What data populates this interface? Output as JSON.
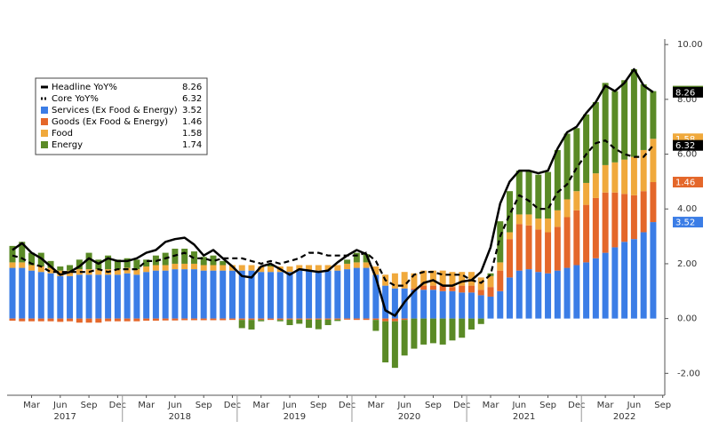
{
  "chart_data": {
    "type": "stacked_bar_line",
    "categories": [
      null,
      null,
      "Mar",
      null,
      null,
      "Jun",
      null,
      null,
      "Sep",
      null,
      null,
      "Dec",
      null,
      null,
      "Mar",
      null,
      null,
      "Jun",
      null,
      null,
      "Sep",
      null,
      null,
      "Dec",
      null,
      null,
      "Mar",
      null,
      null,
      "Jun",
      null,
      null,
      "Sep",
      null,
      null,
      "Dec",
      null,
      null,
      "Mar",
      null,
      null,
      "Jun",
      null,
      null,
      "Sep",
      null,
      null,
      "Dec",
      null,
      null,
      "Mar",
      null,
      null,
      "Jun",
      null,
      null,
      "Sep",
      null,
      null,
      "Dec",
      null,
      null,
      "Mar",
      null,
      null,
      "Jun",
      null,
      null,
      "Sep"
    ],
    "years": [
      "2017",
      "2018",
      "2019",
      "2020",
      "2021",
      "2022"
    ],
    "series": [
      {
        "name": "Headline YoY%",
        "kind": "line",
        "dashed": false,
        "color": "#000000",
        "values": [
          2.5,
          2.75,
          2.4,
          2.2,
          1.9,
          1.6,
          1.7,
          1.9,
          2.2,
          2.0,
          2.2,
          2.1,
          2.1,
          2.2,
          2.4,
          2.5,
          2.8,
          2.9,
          2.95,
          2.7,
          2.3,
          2.5,
          2.2,
          1.9,
          1.55,
          1.5,
          1.9,
          2.0,
          1.8,
          1.6,
          1.8,
          1.75,
          1.7,
          1.75,
          2.05,
          2.3,
          2.5,
          2.35,
          1.5,
          0.3,
          0.1,
          0.6,
          1.0,
          1.3,
          1.4,
          1.2,
          1.2,
          1.35,
          1.4,
          1.7,
          2.6,
          4.2,
          5.0,
          5.4,
          5.4,
          5.3,
          5.4,
          6.2,
          6.8,
          7.0,
          7.5,
          7.9,
          8.5,
          8.3,
          8.6,
          9.1,
          8.5,
          8.26,
          null
        ]
      },
      {
        "name": "Core YoY%",
        "kind": "line",
        "dashed": true,
        "color": "#000000",
        "values": [
          2.3,
          2.2,
          2.0,
          1.9,
          1.7,
          1.7,
          1.7,
          1.7,
          1.7,
          1.8,
          1.7,
          1.8,
          1.8,
          1.8,
          2.1,
          2.1,
          2.2,
          2.3,
          2.4,
          2.2,
          2.2,
          2.1,
          2.2,
          2.2,
          2.2,
          2.1,
          2.0,
          2.1,
          2.0,
          2.1,
          2.2,
          2.4,
          2.4,
          2.3,
          2.3,
          2.3,
          2.3,
          2.4,
          2.1,
          1.4,
          1.2,
          1.2,
          1.6,
          1.7,
          1.7,
          1.6,
          1.6,
          1.6,
          1.4,
          1.3,
          1.6,
          3.0,
          3.8,
          4.5,
          4.3,
          4.0,
          4.0,
          4.6,
          4.9,
          5.5,
          6.0,
          6.4,
          6.5,
          6.2,
          6.0,
          5.9,
          5.9,
          6.32,
          null
        ]
      },
      {
        "name": "Services (Ex Food & Energy)",
        "kind": "bar",
        "color": "#3b7de6",
        "values": [
          1.85,
          1.85,
          1.75,
          1.7,
          1.65,
          1.55,
          1.55,
          1.6,
          1.6,
          1.6,
          1.6,
          1.6,
          1.65,
          1.6,
          1.7,
          1.75,
          1.75,
          1.8,
          1.8,
          1.8,
          1.75,
          1.75,
          1.75,
          1.75,
          1.75,
          1.75,
          1.7,
          1.7,
          1.7,
          1.7,
          1.75,
          1.75,
          1.75,
          1.75,
          1.75,
          1.8,
          1.85,
          1.85,
          1.6,
          1.2,
          1.1,
          1.1,
          1.05,
          1.05,
          1.05,
          1.0,
          1.0,
          0.95,
          0.95,
          0.85,
          0.8,
          1.0,
          1.5,
          1.75,
          1.8,
          1.7,
          1.65,
          1.75,
          1.85,
          1.95,
          2.05,
          2.2,
          2.4,
          2.6,
          2.8,
          2.9,
          3.15,
          3.52,
          null
        ]
      },
      {
        "name": "Goods (Ex Food & Energy)",
        "kind": "bar",
        "color": "#e4672a",
        "values": [
          -0.08,
          -0.1,
          -0.1,
          -0.1,
          -0.1,
          -0.12,
          -0.1,
          -0.15,
          -0.15,
          -0.15,
          -0.1,
          -0.1,
          -0.1,
          -0.1,
          -0.08,
          -0.08,
          -0.07,
          -0.07,
          -0.06,
          -0.06,
          -0.06,
          -0.06,
          -0.06,
          -0.05,
          -0.05,
          -0.05,
          -0.05,
          -0.05,
          -0.05,
          -0.04,
          -0.04,
          -0.04,
          -0.04,
          -0.04,
          -0.04,
          -0.04,
          -0.05,
          -0.05,
          -0.05,
          -0.1,
          -0.1,
          -0.05,
          0.05,
          0.15,
          0.15,
          0.2,
          0.15,
          0.25,
          0.25,
          0.2,
          0.35,
          0.75,
          1.4,
          1.7,
          1.6,
          1.55,
          1.5,
          1.6,
          1.85,
          2.0,
          2.1,
          2.2,
          2.2,
          2.0,
          1.75,
          1.6,
          1.5,
          1.46,
          null
        ]
      },
      {
        "name": "Food",
        "kind": "bar",
        "color": "#f0a93c",
        "values": [
          0.2,
          0.2,
          0.2,
          0.2,
          0.2,
          0.2,
          0.2,
          0.2,
          0.2,
          0.2,
          0.2,
          0.2,
          0.2,
          0.2,
          0.2,
          0.2,
          0.2,
          0.2,
          0.2,
          0.2,
          0.2,
          0.2,
          0.2,
          0.2,
          0.2,
          0.2,
          0.2,
          0.2,
          0.2,
          0.2,
          0.2,
          0.2,
          0.2,
          0.2,
          0.2,
          0.2,
          0.2,
          0.2,
          0.3,
          0.4,
          0.55,
          0.6,
          0.55,
          0.55,
          0.55,
          0.55,
          0.55,
          0.5,
          0.5,
          0.45,
          0.4,
          0.3,
          0.25,
          0.35,
          0.4,
          0.4,
          0.5,
          0.6,
          0.65,
          0.7,
          0.8,
          0.9,
          1.0,
          1.1,
          1.25,
          1.4,
          1.5,
          1.58,
          null
        ]
      },
      {
        "name": "Energy",
        "kind": "bar",
        "color": "#5a8a26",
        "values": [
          0.6,
          0.75,
          0.45,
          0.5,
          0.25,
          0.15,
          0.2,
          0.35,
          0.6,
          0.35,
          0.5,
          0.35,
          0.35,
          0.35,
          0.25,
          0.35,
          0.45,
          0.55,
          0.55,
          0.45,
          0.3,
          0.35,
          0.15,
          0.0,
          -0.3,
          -0.35,
          -0.05,
          0.05,
          -0.05,
          -0.2,
          -0.15,
          -0.3,
          -0.35,
          -0.2,
          -0.05,
          0.15,
          0.35,
          0.3,
          -0.4,
          -1.5,
          -1.7,
          -1.3,
          -1.1,
          -0.95,
          -0.9,
          -0.95,
          -0.8,
          -0.7,
          -0.4,
          -0.2,
          0.1,
          1.5,
          1.5,
          1.6,
          1.6,
          1.6,
          1.7,
          2.2,
          2.4,
          2.3,
          2.5,
          2.6,
          3.0,
          2.6,
          2.9,
          3.2,
          2.4,
          1.74,
          null
        ]
      }
    ],
    "ylim": [
      -2.8,
      10.2
    ],
    "yticks": [
      {
        "value": -2,
        "label": "-2.00"
      },
      {
        "value": 0,
        "label": "0.00"
      },
      {
        "value": 2,
        "label": "2.00"
      },
      {
        "value": 4,
        "label": "4.00"
      },
      {
        "value": 6,
        "label": "6.00"
      },
      {
        "value": 8,
        "label": "8.00"
      },
      {
        "value": 10,
        "label": "10.00"
      }
    ]
  }
}
